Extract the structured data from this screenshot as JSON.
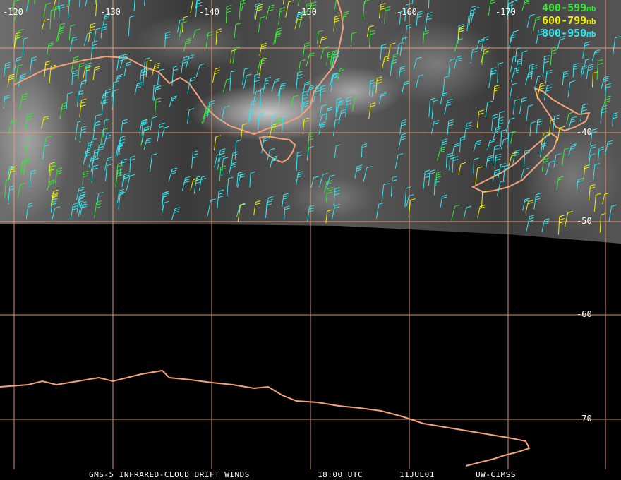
{
  "legend": [
    {
      "range": "400-599",
      "unit": "mb",
      "color": "#39e639"
    },
    {
      "range": "600-799",
      "unit": "mb",
      "color": "#f0f000"
    },
    {
      "range": "800-950",
      "unit": "mb",
      "color": "#33e6f0"
    }
  ],
  "longitude_labels": [
    "-120",
    "-130",
    "-140",
    "-150",
    "-160",
    "-170"
  ],
  "latitude_labels": [
    "-40",
    "-50",
    "-60",
    "-70"
  ],
  "footer": {
    "product": "GMS-5 INFRARED-CLOUD DRIFT WINDS",
    "time": "18:00 UTC",
    "date": "11JUL01",
    "source": "UW-CIMSS"
  },
  "colors": {
    "grid": "#f0a27a",
    "coast": "#f5a27a",
    "background": "#000000"
  }
}
